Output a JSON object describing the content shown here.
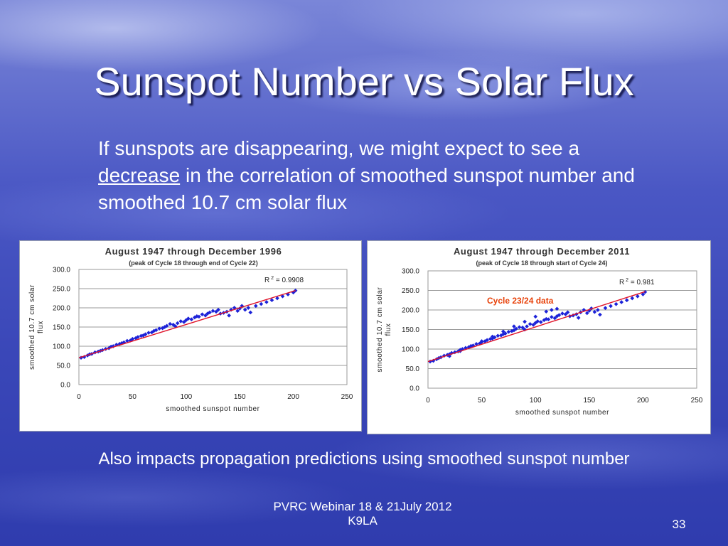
{
  "slide": {
    "title": "Sunspot Number vs Solar Flux",
    "intro_part1": "If sunspots are disappearing, we might expect to see a ",
    "intro_emph": "decrease",
    "intro_part2": " in the correlation of smoothed sunspot number and smoothed 10.7 cm solar flux",
    "bottom_note": "Also impacts propagation predictions using smoothed sunspot number",
    "footer_line1": "PVRC Webinar 18 & 21July 2012",
    "footer_line2": "K9LA",
    "page_number": "33"
  },
  "chart_data": [
    {
      "type": "scatter",
      "title": "August 1947 through December 1996",
      "subtitle": "(peak of Cycle 18 through end of Cycle 22)",
      "xlabel": "smoothed sunspot number",
      "ylabel_line1": "smoothed 10.7 cm solar",
      "ylabel_line2": "flux",
      "xlim": [
        0,
        250
      ],
      "ylim": [
        0,
        300
      ],
      "xticks": [
        "0",
        "50",
        "100",
        "150",
        "200",
        "250"
      ],
      "yticks": [
        "0.0",
        "50.0",
        "100.0",
        "150.0",
        "200.0",
        "250.0",
        "300.0"
      ],
      "r2_label": "R",
      "r2_sup": "2",
      "r2_value": "= 0.9908",
      "annotation": "",
      "point_color": "#1c22d8",
      "trend_color": "#e0142a",
      "trendline": {
        "x": [
          0,
          202
        ],
        "y": [
          70,
          245
        ]
      },
      "points": {
        "x": [
          2,
          5,
          8,
          10,
          12,
          15,
          18,
          20,
          22,
          25,
          28,
          30,
          32,
          35,
          38,
          40,
          42,
          45,
          48,
          50,
          53,
          55,
          58,
          60,
          62,
          65,
          68,
          70,
          72,
          75,
          78,
          80,
          82,
          85,
          88,
          90,
          92,
          95,
          98,
          100,
          102,
          105,
          108,
          110,
          112,
          115,
          118,
          120,
          122,
          125,
          128,
          130,
          132,
          135,
          138,
          140,
          142,
          145,
          148,
          150,
          152,
          155,
          158,
          160,
          165,
          170,
          175,
          180,
          185,
          190,
          195,
          200,
          202
        ],
        "y": [
          70,
          72,
          76,
          79,
          80,
          84,
          86,
          88,
          90,
          93,
          95,
          99,
          100,
          104,
          106,
          108,
          110,
          114,
          115,
          119,
          121,
          124,
          127,
          128,
          131,
          135,
          136,
          140,
          142,
          146,
          147,
          150,
          153,
          158,
          156,
          152,
          160,
          165,
          163,
          168,
          172,
          170,
          175,
          178,
          177,
          183,
          180,
          185,
          188,
          192,
          190,
          195,
          185,
          187,
          190,
          180,
          195,
          200,
          192,
          198,
          205,
          195,
          200,
          188,
          205,
          210,
          215,
          220,
          225,
          230,
          235,
          240,
          245
        ]
      }
    },
    {
      "type": "scatter",
      "title": "August 1947 through December 2011",
      "subtitle": "(peak of Cycle 18 through start of Cycle 24)",
      "xlabel": "smoothed sunspot number",
      "ylabel_line1": "smoothed 10.7 cm solar",
      "ylabel_line2": "flux",
      "xlim": [
        0,
        250
      ],
      "ylim": [
        0,
        300
      ],
      "xticks": [
        "0",
        "50",
        "100",
        "150",
        "200",
        "250"
      ],
      "yticks": [
        "0.0",
        "50.0",
        "100.0",
        "150.0",
        "200.0",
        "250.0",
        "300.0"
      ],
      "r2_label": "R",
      "r2_sup": "2",
      "r2_value": "= 0.981",
      "annotation": "Cycle 23/24 data",
      "annotation_color": "#e8420a",
      "point_color": "#1c22d8",
      "trend_color": "#e0142a",
      "trendline": {
        "x": [
          0,
          202
        ],
        "y": [
          68,
          247
        ]
      },
      "points": {
        "x": [
          2,
          5,
          8,
          10,
          12,
          15,
          18,
          20,
          22,
          25,
          28,
          30,
          32,
          35,
          38,
          40,
          42,
          45,
          48,
          50,
          53,
          55,
          58,
          60,
          62,
          65,
          68,
          70,
          72,
          75,
          78,
          80,
          82,
          85,
          88,
          90,
          92,
          95,
          98,
          100,
          102,
          105,
          108,
          110,
          112,
          115,
          118,
          120,
          122,
          125,
          128,
          130,
          132,
          135,
          138,
          140,
          142,
          145,
          148,
          150,
          152,
          155,
          158,
          160,
          165,
          170,
          175,
          180,
          185,
          190,
          195,
          200,
          202,
          20,
          30,
          40,
          50,
          60,
          70,
          80,
          90,
          100,
          110,
          115,
          120
        ],
        "y": [
          68,
          70,
          74,
          77,
          79,
          83,
          85,
          87,
          90,
          92,
          94,
          98,
          100,
          103,
          105,
          107,
          109,
          113,
          114,
          118,
          120,
          123,
          126,
          127,
          130,
          134,
          135,
          138,
          140,
          144,
          146,
          148,
          152,
          156,
          155,
          150,
          158,
          164,
          162,
          167,
          171,
          169,
          174,
          177,
          176,
          182,
          179,
          184,
          187,
          191,
          189,
          194,
          184,
          186,
          189,
          180,
          194,
          200,
          192,
          198,
          204,
          195,
          200,
          188,
          205,
          210,
          215,
          220,
          225,
          230,
          235,
          240,
          246,
          82,
          95,
          108,
          120,
          132,
          145,
          158,
          170,
          183,
          196,
          200,
          203
        ]
      }
    }
  ]
}
